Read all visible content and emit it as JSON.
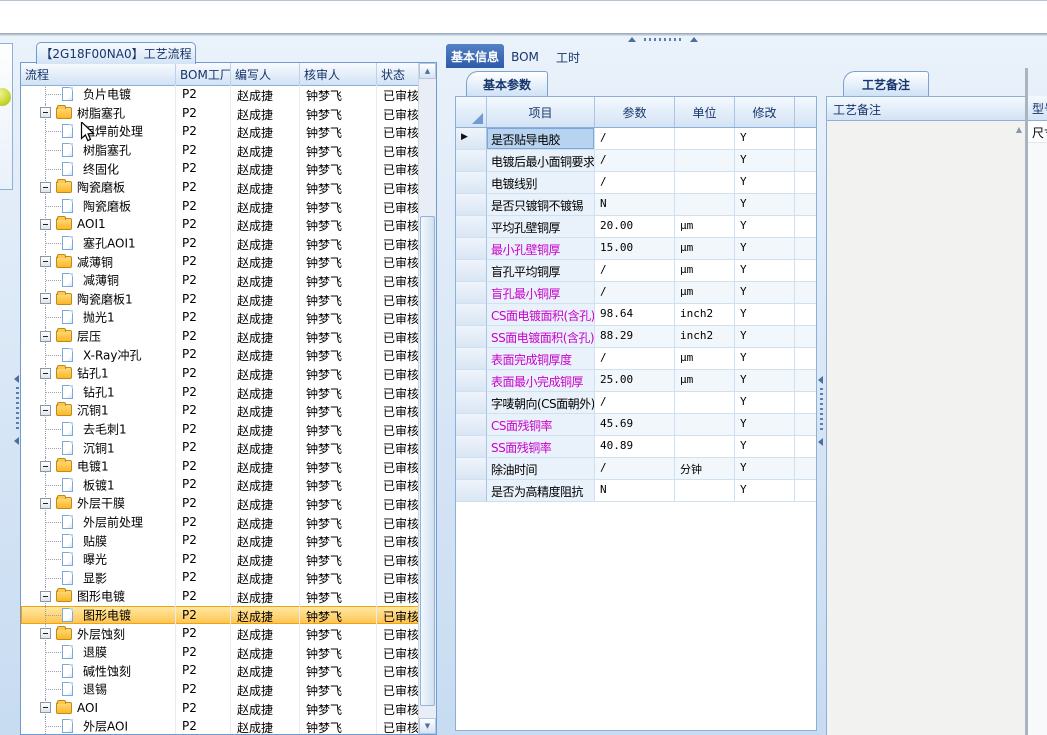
{
  "flow_panel": {
    "tab_title": "【2G18F00NA0】工艺流程",
    "columns": [
      "流程",
      "BOM工厂",
      "编写人",
      "核审人",
      "状态"
    ],
    "row_defaults": {
      "factory": "P2",
      "writer": "赵成捷",
      "reviewer": "钟梦飞",
      "status": "已审核"
    },
    "rows": [
      {
        "label": "负片电镀",
        "kind": "file"
      },
      {
        "label": "树脂塞孔",
        "kind": "folder"
      },
      {
        "label": "阻焊前处理",
        "kind": "file"
      },
      {
        "label": "树脂塞孔",
        "kind": "file"
      },
      {
        "label": "终固化",
        "kind": "file"
      },
      {
        "label": "陶瓷磨板",
        "kind": "folder"
      },
      {
        "label": "陶瓷磨板",
        "kind": "file"
      },
      {
        "label": "AOI1",
        "kind": "folder"
      },
      {
        "label": "塞孔AOI1",
        "kind": "file"
      },
      {
        "label": "减薄铜",
        "kind": "folder"
      },
      {
        "label": "减薄铜",
        "kind": "file"
      },
      {
        "label": "陶瓷磨板1",
        "kind": "folder"
      },
      {
        "label": "抛光1",
        "kind": "file"
      },
      {
        "label": "层压",
        "kind": "folder"
      },
      {
        "label": "X-Ray冲孔",
        "kind": "file"
      },
      {
        "label": "钻孔1",
        "kind": "folder"
      },
      {
        "label": "钻孔1",
        "kind": "file"
      },
      {
        "label": "沉铜1",
        "kind": "folder"
      },
      {
        "label": "去毛刺1",
        "kind": "file"
      },
      {
        "label": "沉铜1",
        "kind": "file"
      },
      {
        "label": "电镀1",
        "kind": "folder"
      },
      {
        "label": "板镀1",
        "kind": "file"
      },
      {
        "label": "外层干膜",
        "kind": "folder"
      },
      {
        "label": "外层前处理",
        "kind": "file"
      },
      {
        "label": "贴膜",
        "kind": "file"
      },
      {
        "label": "曝光",
        "kind": "file"
      },
      {
        "label": "显影",
        "kind": "file"
      },
      {
        "label": "图形电镀",
        "kind": "folder"
      },
      {
        "label": "图形电镀",
        "kind": "file",
        "selected": true
      },
      {
        "label": "外层蚀刻",
        "kind": "folder"
      },
      {
        "label": "退膜",
        "kind": "file"
      },
      {
        "label": "碱性蚀刻",
        "kind": "file"
      },
      {
        "label": "退锡",
        "kind": "file"
      },
      {
        "label": "AOI",
        "kind": "folder"
      },
      {
        "label": "外层AOI",
        "kind": "file"
      }
    ]
  },
  "info_panel": {
    "tabs": [
      {
        "label": "基本信息",
        "active": true
      },
      {
        "label": "BOM",
        "active": false
      },
      {
        "label": "工时",
        "active": false
      }
    ],
    "subtab": "基本参数",
    "table": {
      "columns": [
        "项目",
        "参数",
        "单位",
        "修改"
      ],
      "rows": [
        {
          "item": "是否贴导电胶",
          "value": "/",
          "unit": "",
          "modify": "Y",
          "magenta": false,
          "focused": true
        },
        {
          "item": "电镀后最小面铜要求",
          "value": "/",
          "unit": "",
          "modify": "Y",
          "magenta": false
        },
        {
          "item": "电镀线别",
          "value": "/",
          "unit": "",
          "modify": "Y",
          "magenta": false
        },
        {
          "item": "是否只镀铜不镀锡",
          "value": "N",
          "unit": "",
          "modify": "Y",
          "magenta": false
        },
        {
          "item": "平均孔壁铜厚",
          "value": "20.00",
          "unit": "µm",
          "modify": "Y",
          "magenta": false
        },
        {
          "item": "最小孔壁铜厚",
          "value": "15.00",
          "unit": "µm",
          "modify": "Y",
          "magenta": true
        },
        {
          "item": "盲孔平均铜厚",
          "value": "/",
          "unit": "µm",
          "modify": "Y",
          "magenta": false
        },
        {
          "item": "盲孔最小铜厚",
          "value": "/",
          "unit": "µm",
          "modify": "Y",
          "magenta": true
        },
        {
          "item": "CS面电镀面积(含孔)",
          "value": "98.64",
          "unit": "inch2",
          "modify": "Y",
          "magenta": true
        },
        {
          "item": "SS面电镀面积(含孔)",
          "value": "88.29",
          "unit": "inch2",
          "modify": "Y",
          "magenta": true
        },
        {
          "item": "表面完成铜厚度",
          "value": "/",
          "unit": "µm",
          "modify": "Y",
          "magenta": true
        },
        {
          "item": "表面最小完成铜厚",
          "value": "25.00",
          "unit": "µm",
          "modify": "Y",
          "magenta": true
        },
        {
          "item": "字唛朝向(CS面朝外)",
          "value": "/",
          "unit": "",
          "modify": "Y",
          "magenta": false
        },
        {
          "item": "CS面残铜率",
          "value": "45.69",
          "unit": "",
          "modify": "Y",
          "magenta": true
        },
        {
          "item": "SS面残铜率",
          "value": "40.89",
          "unit": "",
          "modify": "Y",
          "magenta": true
        },
        {
          "item": "除油时间",
          "value": "/",
          "unit": "分钟",
          "modify": "Y",
          "magenta": false
        },
        {
          "item": "是否为高精度阻抗",
          "value": "N",
          "unit": "",
          "modify": "Y",
          "magenta": false
        }
      ]
    }
  },
  "notes_panel": {
    "subtab": "工艺备注",
    "header": "工艺备注",
    "side_header": "型号",
    "side_cell": "尺寸"
  },
  "colors": {
    "selection_orange_top": "#ffeaa6",
    "selection_orange_bottom": "#ffc351",
    "active_tab_blue": "#2c5ba8",
    "magenta_param": "#cc00cc",
    "header_text_navy": "#17356b",
    "panel_border_blue": "#6f9bd2",
    "focused_cell_blue": "#b8d3ef",
    "app_background_top": "#eaf2fb",
    "app_background_bottom": "#c7dbf1"
  }
}
